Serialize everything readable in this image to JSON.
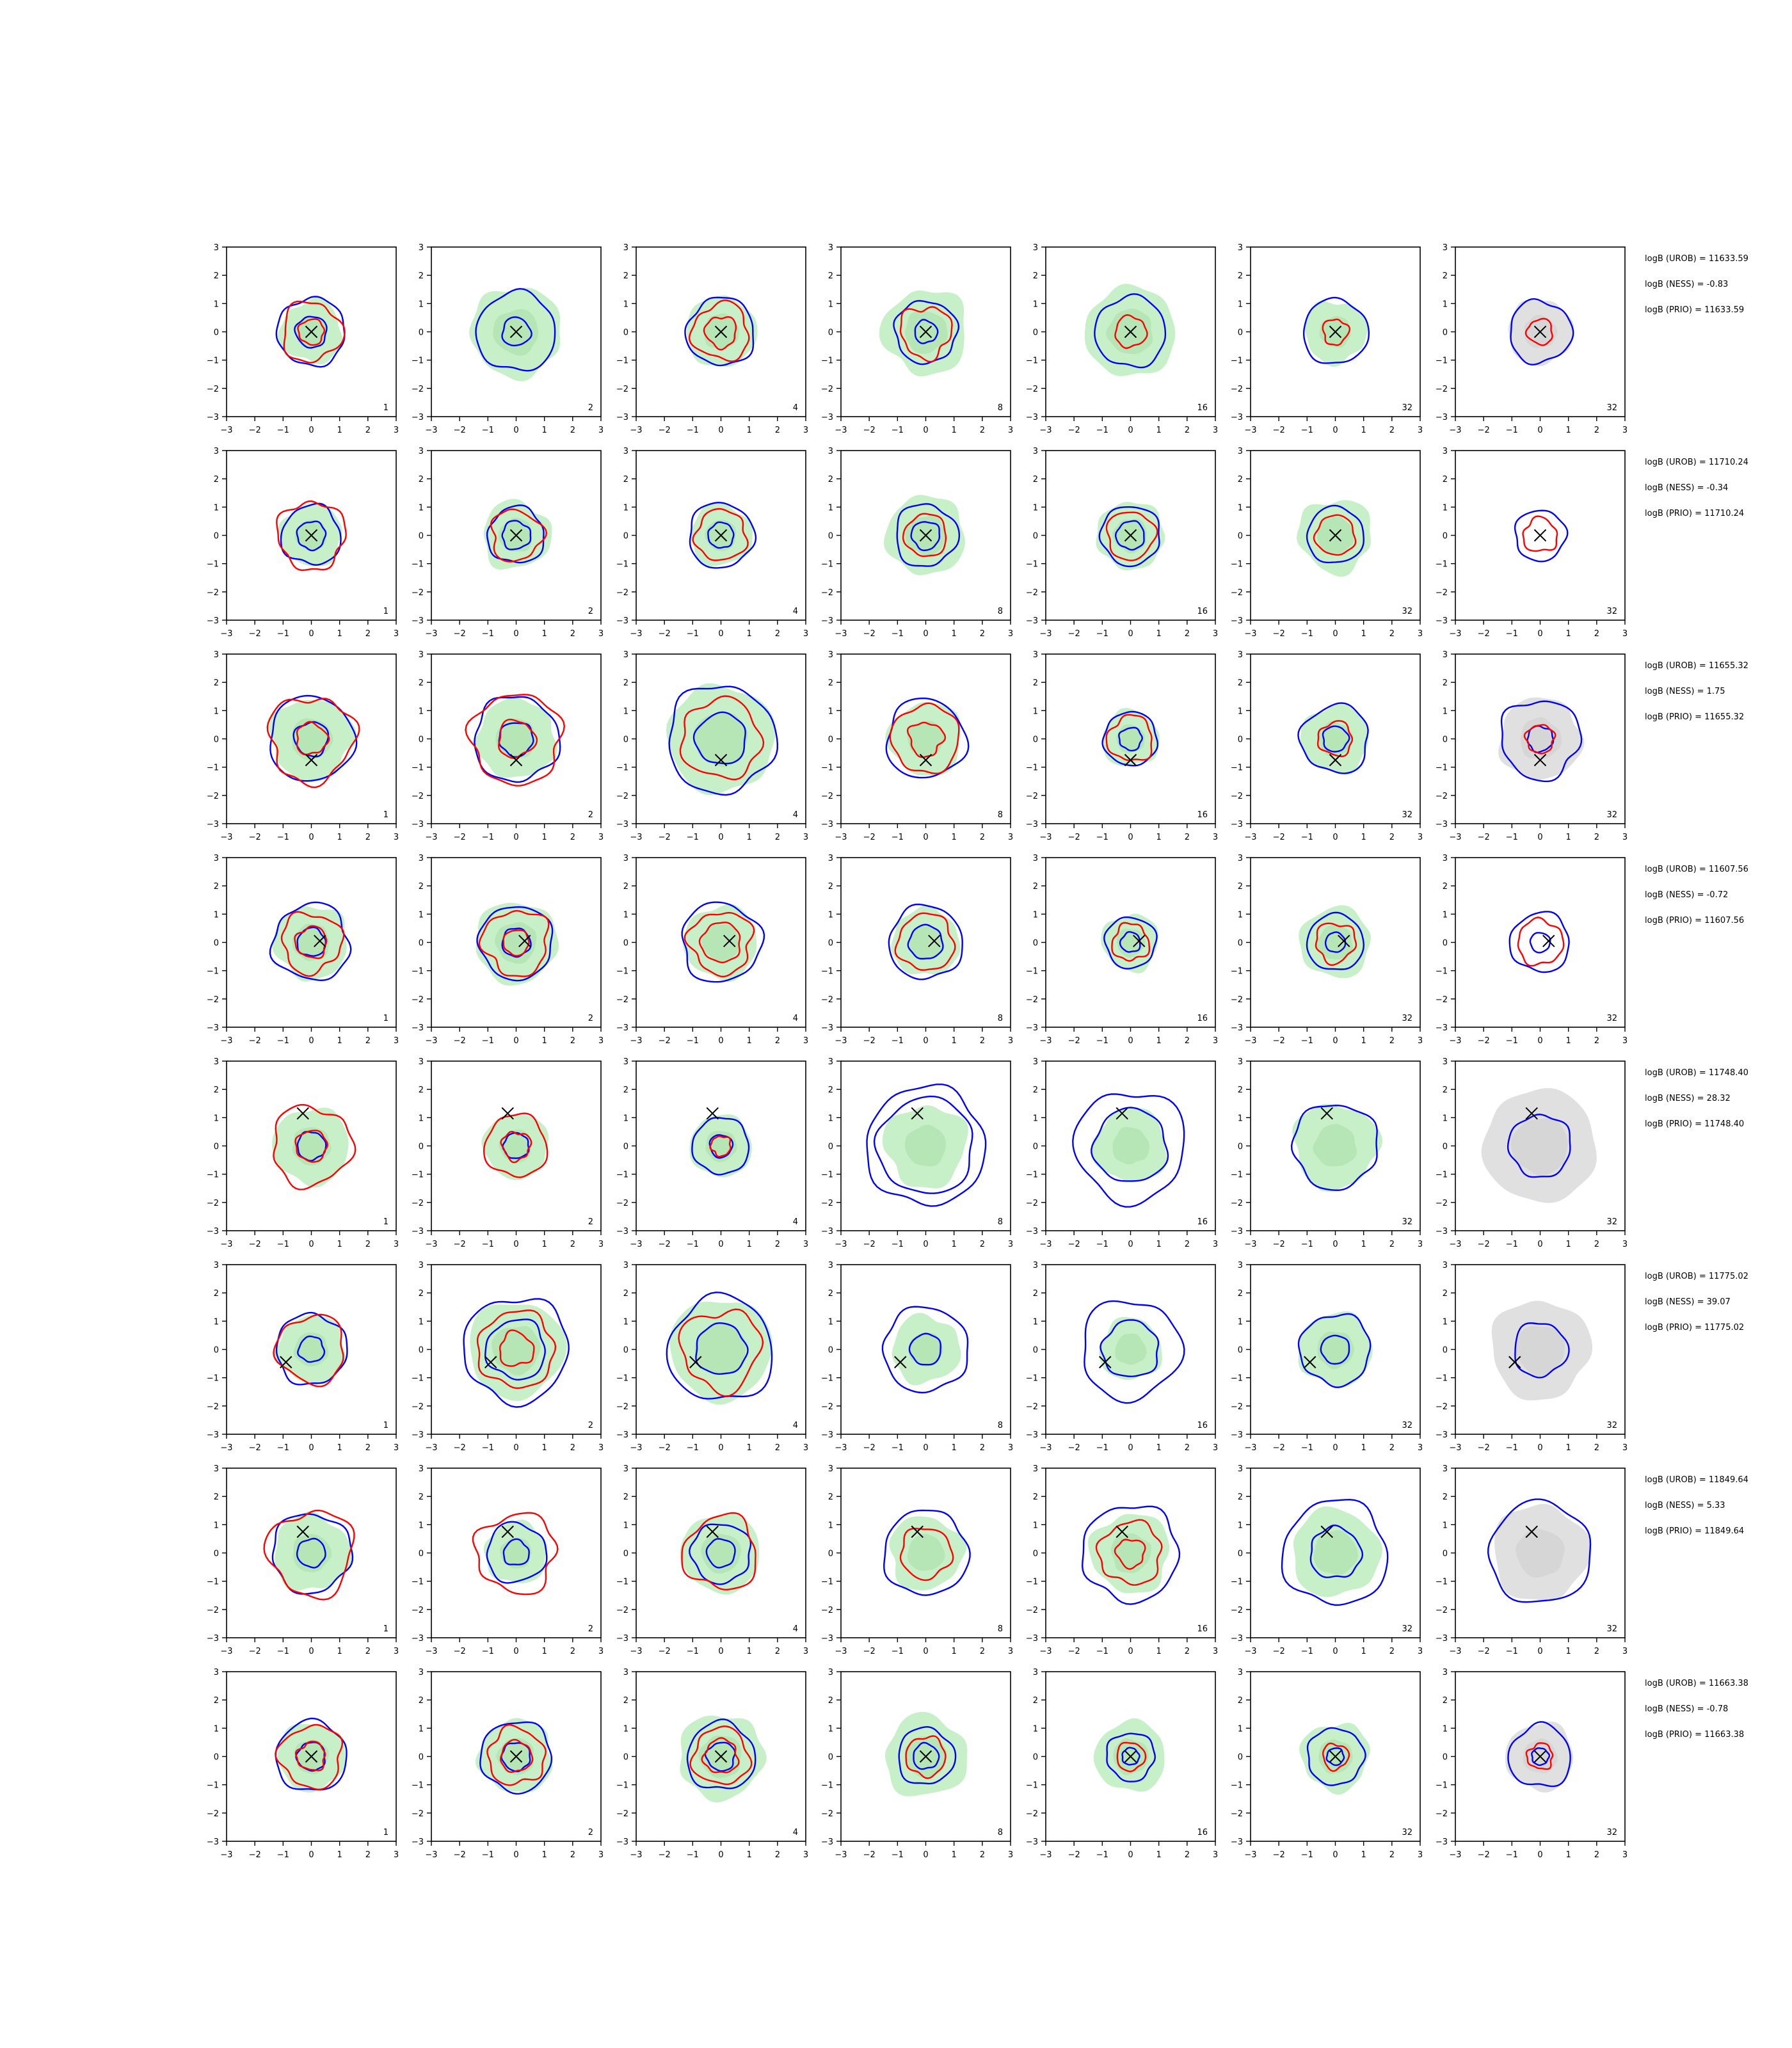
{
  "chart_data": {
    "type": "contour-grid",
    "n_rows": 8,
    "n_cols": 7,
    "xlim": [
      -3,
      3
    ],
    "ylim": [
      -3,
      3
    ],
    "ticks": [
      -3,
      -2,
      -1,
      0,
      1,
      2,
      3
    ],
    "tick_labels": [
      "−3",
      "−2",
      "−1",
      "0",
      "1",
      "2",
      "3"
    ],
    "column_labels": [
      "1",
      "2",
      "4",
      "8",
      "16",
      "32",
      "32"
    ],
    "colors": {
      "blue_contour": "#0000ff",
      "red_contour": "#ff0000",
      "green_fill": "#c8f0c8",
      "green_fill_dark": "#a8dca8",
      "gray_fill": "#e0e0e0",
      "gray_fill_dark": "#cfcfcf",
      "marker": "#000000"
    },
    "rows": [
      {
        "marker": [
          0,
          0
        ],
        "annotations": [
          "logB (UROB) = 11633.59",
          "logB (NESS) = -0.83",
          "logB (PRIO) = 11633.59"
        ],
        "panels": [
          {
            "green_r": 1.1,
            "blue": [
              1.2,
              0.55
            ],
            "red": [
              1.05,
              0.45
            ]
          },
          {
            "green_r": 1.6,
            "blue": [
              1.4,
              0.5
            ],
            "red": []
          },
          {
            "green_r": 1.25,
            "blue": [
              1.2
            ],
            "red": [
              1.0,
              0.55
            ]
          },
          {
            "green_r": 1.5,
            "blue": [
              1.1,
              0.4
            ],
            "red": [
              0.9
            ]
          },
          {
            "green_r": 1.6,
            "blue": [
              1.25
            ],
            "red": [
              0.55
            ]
          },
          {
            "green_r": 1.1,
            "blue": [
              1.15
            ],
            "red": [
              0.45
            ]
          },
          {
            "gray_r": 1.15,
            "blue": [
              1.1
            ],
            "red": [
              0.45
            ]
          }
        ]
      },
      {
        "marker": [
          0,
          0
        ],
        "annotations": [
          "logB (UROB) = 11710.24",
          "logB (NESS) = -0.34",
          "logB (PRIO) = 11710.24"
        ],
        "panels": [
          {
            "green_r": 1.1,
            "blue": [
              1.05,
              0.5
            ],
            "red": [
              1.2
            ]
          },
          {
            "green_r": 1.2,
            "blue": [
              1.0,
              0.5
            ],
            "red": [
              0.9
            ]
          },
          {
            "green_r": 1.1,
            "blue": [
              1.15,
              0.45
            ],
            "red": [
              0.9
            ]
          },
          {
            "green_r": 1.4,
            "blue": [
              1.1,
              0.5
            ],
            "red": [
              0.75
            ]
          },
          {
            "green_r": 1.2,
            "blue": [
              1.05,
              0.5
            ],
            "red": [
              0.85
            ]
          },
          {
            "green_r": 1.3,
            "blue": [
              1.0
            ],
            "red": [
              0.7
            ]
          },
          {
            "blue": [
              0.9
            ],
            "red": [
              0.6
            ]
          }
        ]
      },
      {
        "marker": [
          0,
          -0.75
        ],
        "annotations": [
          "logB (UROB) = 11655.32",
          "logB (NESS) = 1.75",
          "logB (PRIO) = 11655.32"
        ],
        "panels": [
          {
            "green_r": 1.45,
            "blue": [
              1.5,
              0.6
            ],
            "red": [
              1.5,
              0.55
            ]
          },
          {
            "green_r": 1.4,
            "blue": [
              1.5,
              0.6
            ],
            "red": [
              1.6,
              0.65
            ]
          },
          {
            "green_r": 1.9,
            "blue": [
              1.9,
              0.9
            ],
            "red": [
              1.4
            ]
          },
          {
            "green_r": 1.3,
            "blue": [
              1.4
            ],
            "red": [
              1.2,
              0.6
            ]
          },
          {
            "green_r": 1.0,
            "blue": [
              0.95,
              0.4
            ],
            "red": [
              0.8
            ]
          },
          {
            "green_r": 1.2,
            "blue": [
              1.2,
              0.45
            ],
            "red": [
              0.6
            ]
          },
          {
            "gray_r": 1.45,
            "blue": [
              1.4,
              0.45
            ],
            "red": [
              0.5
            ]
          }
        ]
      },
      {
        "marker": [
          0.3,
          0.05
        ],
        "annotations": [
          "logB (UROB) = 11607.56",
          "logB (NESS) = -0.72",
          "logB (PRIO) = 11607.56"
        ],
        "panels": [
          {
            "green_r": 1.3,
            "blue": [
              1.35,
              0.5
            ],
            "red": [
              1.05,
              0.55
            ]
          },
          {
            "green_r": 1.45,
            "blue": [
              1.3,
              0.5
            ],
            "red": [
              1.15,
              0.45
            ]
          },
          {
            "green_r": 1.3,
            "blue": [
              1.4
            ],
            "red": [
              1.1,
              0.7
            ]
          },
          {
            "green_r": 1.2,
            "blue": [
              1.3,
              0.6
            ],
            "red": [
              1.0
            ]
          },
          {
            "green_r": 1.0,
            "blue": [
              0.9,
              0.35
            ],
            "red": [
              0.65
            ]
          },
          {
            "green_r": 1.25,
            "blue": [
              1.0,
              0.35
            ],
            "red": [
              0.7
            ]
          },
          {
            "blue": [
              1.05,
              0.35
            ],
            "red": [
              0.8
            ]
          }
        ]
      },
      {
        "marker": [
          -0.3,
          1.15
        ],
        "annotations": [
          "logB (UROB) = 11748.40",
          "logB (NESS) = 28.32",
          "logB (PRIO) = 11748.40"
        ],
        "panels": [
          {
            "green_r": 1.35,
            "blue": [
              0.5
            ],
            "red": [
              1.4,
              0.55
            ]
          },
          {
            "green_r": 1.15,
            "blue": [
              0.45
            ],
            "red": [
              1.1,
              0.5
            ]
          },
          {
            "green_r": 1.1,
            "blue": [
              1.0,
              0.4
            ],
            "red": [
              0.35
            ]
          },
          {
            "green_r": 1.45,
            "blue": [
              2.1,
              1.7
            ],
            "red": []
          },
          {
            "green_r": 1.3,
            "blue": [
              1.95,
              1.3
            ],
            "red": []
          },
          {
            "green_r": 1.5,
            "blue": [
              1.5
            ],
            "red": []
          },
          {
            "gray_r": 2.0,
            "blue": [
              1.1
            ],
            "red": []
          }
        ]
      },
      {
        "marker": [
          -0.9,
          -0.45
        ],
        "annotations": [
          "logB (UROB) = 11775.02",
          "logB (NESS) = 39.07",
          "logB (PRIO) = 11775.02"
        ],
        "panels": [
          {
            "green_r": 1.2,
            "blue": [
              1.25,
              0.45
            ],
            "red": [
              1.2
            ]
          },
          {
            "green_r": 1.7,
            "blue": [
              1.85,
              1.05
            ],
            "red": [
              1.35,
              0.6
            ]
          },
          {
            "green_r": 1.8,
            "blue": [
              1.85,
              0.9
            ],
            "red": [
              1.4
            ]
          },
          {
            "green_r": 1.2,
            "blue": [
              1.5,
              0.55
            ],
            "red": []
          },
          {
            "green_r": 1.1,
            "blue": [
              1.75,
              1.0
            ],
            "red": []
          },
          {
            "green_r": 1.3,
            "blue": [
              1.25,
              0.5
            ],
            "red": []
          },
          {
            "gray_r": 1.75,
            "blue": [
              0.95
            ],
            "red": []
          }
        ]
      },
      {
        "marker": [
          -0.3,
          0.75
        ],
        "annotations": [
          "logB (UROB) = 11849.64",
          "logB (NESS) = 5.33",
          "logB (PRIO) = 11849.64"
        ],
        "panels": [
          {
            "green_r": 1.35,
            "blue": [
              1.4,
              0.5
            ],
            "red": [
              1.5
            ]
          },
          {
            "green_r": 1.1,
            "blue": [
              1.05,
              0.45
            ],
            "red": [
              1.4
            ]
          },
          {
            "green_r": 1.4,
            "blue": [
              1.05,
              0.5
            ],
            "red": [
              1.3
            ]
          },
          {
            "green_r": 1.3,
            "blue": [
              1.5
            ],
            "red": [
              0.9
            ]
          },
          {
            "green_r": 1.4,
            "blue": [
              1.7
            ],
            "red": [
              1.1,
              0.5
            ]
          },
          {
            "green_r": 1.55,
            "blue": [
              1.85,
              0.9
            ],
            "red": []
          },
          {
            "gray_r": 1.7,
            "blue": [
              1.8
            ],
            "red": []
          }
        ]
      },
      {
        "marker": [
          0,
          0
        ],
        "annotations": [
          "logB (UROB) = 11663.38",
          "logB (NESS) = -0.78",
          "logB (PRIO) = 11663.38"
        ],
        "panels": [
          {
            "green_r": 1.2,
            "blue": [
              1.25,
              0.5
            ],
            "red": [
              1.1,
              0.5
            ]
          },
          {
            "green_r": 1.3,
            "blue": [
              1.25,
              0.5
            ],
            "red": [
              1.0,
              0.55
            ]
          },
          {
            "green_r": 1.5,
            "blue": [
              1.2,
              0.5
            ],
            "red": [
              1.0,
              0.6
            ]
          },
          {
            "green_r": 1.45,
            "blue": [
              1.0,
              0.45
            ],
            "red": [
              0.7
            ]
          },
          {
            "green_r": 1.25,
            "blue": [
              0.85,
              0.3
            ],
            "red": [
              0.5
            ]
          },
          {
            "green_r": 1.2,
            "blue": [
              1.0,
              0.3
            ],
            "red": [
              0.45
            ]
          },
          {
            "gray_r": 1.2,
            "blue": [
              1.1,
              0.3
            ],
            "red": [
              0.45
            ]
          }
        ]
      }
    ]
  }
}
